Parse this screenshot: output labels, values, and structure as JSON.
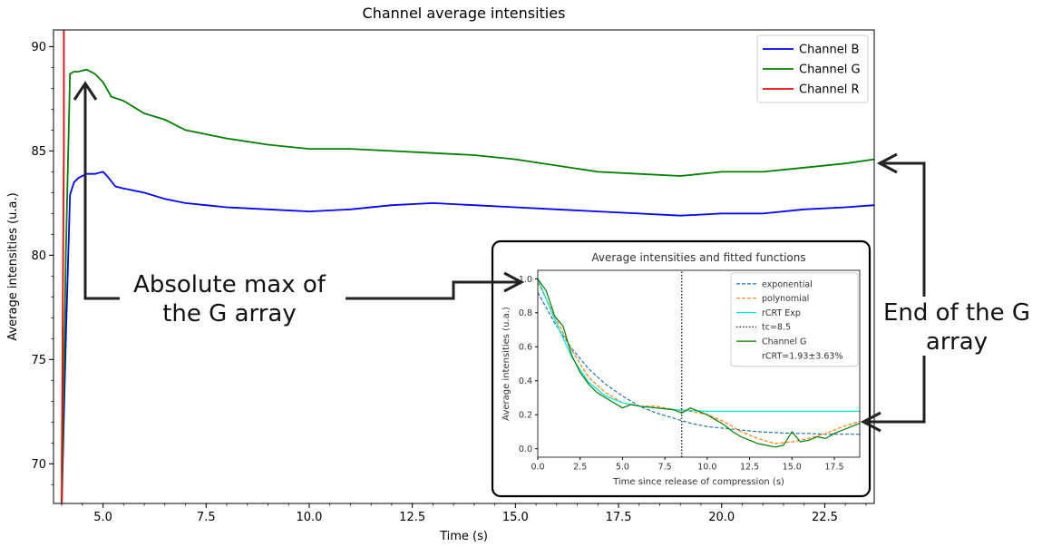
{
  "chart_data": [
    {
      "type": "line",
      "title": "Channel average intensities",
      "xlabel": "Time (s)",
      "ylabel": "Average intensities (u.a.)",
      "xlim": [
        3.8,
        23.7
      ],
      "ylim": [
        68.1,
        90.8
      ],
      "xticks": [
        "5.0",
        "7.5",
        "10.0",
        "12.5",
        "15.0",
        "17.5",
        "20.0",
        "22.5"
      ],
      "yticks": [
        "70",
        "75",
        "80",
        "85",
        "90"
      ],
      "grid": false,
      "legend": "top-right",
      "series": [
        {
          "name": "Channel B",
          "color": "#0000ff",
          "x": [
            4.0,
            4.1,
            4.2,
            4.3,
            4.4,
            4.6,
            4.8,
            5.0,
            5.1,
            5.3,
            5.5,
            6.0,
            6.5,
            7.0,
            7.5,
            8.0,
            9.0,
            10.0,
            11.0,
            12.0,
            13.0,
            14.0,
            15.0,
            16.0,
            17.0,
            18.0,
            19.0,
            20.0,
            21.0,
            22.0,
            23.0,
            23.7
          ],
          "values": [
            68.1,
            76.0,
            82.9,
            83.5,
            83.7,
            83.9,
            83.9,
            84.0,
            83.8,
            83.3,
            83.2,
            83.0,
            82.7,
            82.5,
            82.4,
            82.3,
            82.2,
            82.1,
            82.2,
            82.4,
            82.5,
            82.4,
            82.3,
            82.2,
            82.1,
            82.0,
            81.9,
            82.0,
            82.0,
            82.2,
            82.3,
            82.4
          ]
        },
        {
          "name": "Channel G",
          "color": "#008000",
          "x": [
            4.0,
            4.1,
            4.2,
            4.3,
            4.4,
            4.6,
            4.8,
            5.0,
            5.2,
            5.5,
            6.0,
            6.5,
            7.0,
            7.5,
            8.0,
            9.0,
            10.0,
            11.0,
            12.0,
            13.0,
            14.0,
            15.0,
            16.0,
            17.0,
            18.0,
            19.0,
            20.0,
            21.0,
            22.0,
            23.0,
            23.7
          ],
          "values": [
            68.1,
            80.0,
            88.7,
            88.8,
            88.8,
            88.9,
            88.7,
            88.3,
            87.6,
            87.4,
            86.8,
            86.5,
            86.0,
            85.8,
            85.6,
            85.3,
            85.1,
            85.1,
            85.0,
            84.9,
            84.8,
            84.6,
            84.3,
            84.0,
            83.9,
            83.8,
            84.0,
            84.0,
            84.2,
            84.4,
            84.6
          ]
        },
        {
          "name": "Channel R",
          "color": "#ff0000",
          "x": [
            4.0,
            4.0,
            4.05,
            4.05
          ],
          "values": [
            68.1,
            70.0,
            85.0,
            90.8
          ]
        }
      ]
    },
    {
      "type": "line",
      "title": "Average intensities and fitted functions",
      "xlabel": "Time since release of compression (s)",
      "ylabel": "Average intensities (u.a.)",
      "xlim": [
        0,
        19
      ],
      "ylim": [
        -0.05,
        1.05
      ],
      "xticks": [
        "0.0",
        "2.5",
        "5.0",
        "7.5",
        "10.0",
        "12.5",
        "15.0",
        "17.5"
      ],
      "yticks": [
        "0.0",
        "0.2",
        "0.4",
        "0.6",
        "0.8",
        "1.0"
      ],
      "legend": "top-right",
      "legend_note": "rCRT=1.93±3.63%",
      "series": [
        {
          "name": "exponential",
          "color": "#1f77b4",
          "x": [
            0,
            1,
            2,
            3,
            4,
            5,
            6,
            7,
            8,
            9,
            10,
            11,
            12,
            13,
            14,
            15,
            16,
            17,
            18,
            19
          ],
          "values": [
            0.92,
            0.74,
            0.59,
            0.47,
            0.38,
            0.31,
            0.25,
            0.21,
            0.18,
            0.15,
            0.13,
            0.12,
            0.11,
            0.1,
            0.095,
            0.09,
            0.09,
            0.085,
            0.085,
            0.085
          ]
        },
        {
          "name": "polynomial",
          "color": "#ff7f0e",
          "x": [
            0,
            1,
            2,
            3,
            4,
            5,
            6,
            7,
            8,
            9,
            10,
            11,
            12,
            13,
            14,
            15,
            16,
            17,
            18,
            19
          ],
          "values": [
            0.98,
            0.78,
            0.58,
            0.42,
            0.33,
            0.27,
            0.25,
            0.25,
            0.23,
            0.22,
            0.2,
            0.16,
            0.1,
            0.06,
            0.03,
            0.04,
            0.06,
            0.09,
            0.13,
            0.16
          ]
        },
        {
          "name": "rCRT Exp",
          "color": "#00e5e5",
          "x": [
            0,
            1,
            2,
            3,
            4,
            5,
            6,
            7,
            8,
            9,
            10,
            12,
            14,
            16,
            18,
            19
          ],
          "values": [
            1.0,
            0.76,
            0.54,
            0.39,
            0.31,
            0.27,
            0.25,
            0.24,
            0.23,
            0.225,
            0.22,
            0.22,
            0.22,
            0.22,
            0.22,
            0.22
          ]
        },
        {
          "name": "tc=8.5",
          "color": "#000000",
          "x": [
            8.5,
            8.5
          ],
          "values": [
            -0.05,
            1.05
          ]
        },
        {
          "name": "Channel G",
          "color": "#008000",
          "x": [
            0,
            0.5,
            1,
            1.5,
            2,
            2.5,
            3,
            3.5,
            4,
            4.5,
            5,
            5.5,
            6,
            7,
            8,
            8.5,
            9,
            9.5,
            10,
            10.5,
            11,
            11.5,
            12,
            12.5,
            13,
            13.5,
            14,
            14.5,
            15,
            15.5,
            16,
            16.5,
            17,
            17.5,
            18,
            18.5,
            19
          ],
          "values": [
            1.0,
            0.93,
            0.78,
            0.72,
            0.55,
            0.45,
            0.38,
            0.33,
            0.3,
            0.27,
            0.24,
            0.26,
            0.25,
            0.24,
            0.23,
            0.21,
            0.24,
            0.22,
            0.2,
            0.17,
            0.14,
            0.1,
            0.07,
            0.05,
            0.03,
            0.02,
            0.01,
            0.02,
            0.1,
            0.04,
            0.05,
            0.07,
            0.06,
            0.09,
            0.11,
            0.13,
            0.15
          ]
        }
      ]
    }
  ],
  "annotations": {
    "max_label": "Absolute max of the G array",
    "end_label": "End of the G array"
  }
}
